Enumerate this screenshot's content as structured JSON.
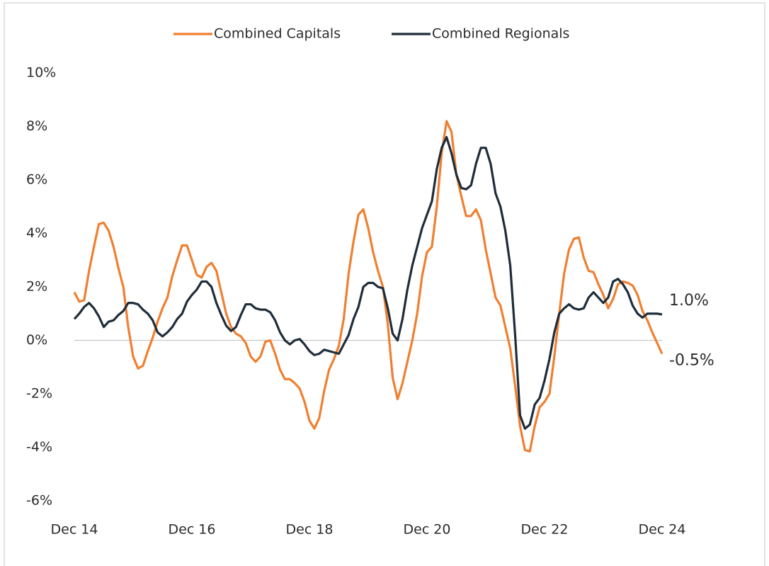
{
  "chart_data": {
    "type": "line",
    "categories": [
      "Dec 14",
      null,
      null,
      null,
      null,
      null,
      null,
      null,
      null,
      null,
      null,
      null,
      null,
      null,
      null,
      null,
      null,
      null,
      null,
      null,
      null,
      null,
      null,
      null,
      "Dec 16",
      null,
      null,
      null,
      null,
      null,
      null,
      null,
      null,
      null,
      null,
      null,
      null,
      null,
      null,
      null,
      null,
      null,
      null,
      null,
      null,
      null,
      null,
      null,
      "Dec 18",
      null,
      null,
      null,
      null,
      null,
      null,
      null,
      null,
      null,
      null,
      null,
      null,
      null,
      null,
      null,
      null,
      null,
      null,
      null,
      null,
      null,
      null,
      null,
      "Dec 20",
      null,
      null,
      null,
      null,
      null,
      null,
      null,
      null,
      null,
      null,
      null,
      null,
      null,
      null,
      null,
      null,
      null,
      null,
      null,
      null,
      null,
      null,
      null,
      "Dec 22",
      null,
      null,
      null,
      null,
      null,
      null,
      null,
      null,
      null,
      null,
      null,
      null,
      null,
      null,
      null,
      null,
      null,
      null,
      null,
      null,
      null,
      null,
      null,
      "Dec 24"
    ],
    "series": [
      {
        "name": "Combined Capitals",
        "color": "#f07f30",
        "values": [
          1.8,
          1.45,
          1.5,
          2.6,
          3.5,
          4.35,
          4.4,
          4.1,
          3.5,
          2.7,
          2.0,
          0.5,
          -0.6,
          -1.05,
          -0.95,
          -0.4,
          0.1,
          0.7,
          1.2,
          1.6,
          2.4,
          3.0,
          3.55,
          3.55,
          3.0,
          2.45,
          2.35,
          2.75,
          2.9,
          2.6,
          1.8,
          1.0,
          0.5,
          0.25,
          0.15,
          -0.1,
          -0.6,
          -0.8,
          -0.6,
          -0.05,
          0.0,
          -0.5,
          -1.1,
          -1.45,
          -1.45,
          -1.6,
          -1.8,
          -2.3,
          -3.0,
          -3.3,
          -2.9,
          -1.9,
          -1.1,
          -0.7,
          -0.2,
          0.8,
          2.5,
          3.7,
          4.7,
          4.9,
          4.2,
          3.3,
          2.6,
          2.0,
          0.6,
          -1.4,
          -2.2,
          -1.6,
          -0.8,
          0.0,
          1.0,
          2.4,
          3.3,
          3.5,
          5.0,
          7.0,
          8.2,
          7.8,
          6.2,
          5.4,
          4.65,
          4.65,
          4.9,
          4.5,
          3.4,
          2.5,
          1.6,
          1.3,
          0.5,
          -0.3,
          -1.7,
          -3.2,
          -4.1,
          -4.15,
          -3.2,
          -2.5,
          -2.3,
          -2.0,
          -0.6,
          1.0,
          2.5,
          3.4,
          3.8,
          3.85,
          3.1,
          2.6,
          2.55,
          2.1,
          1.7,
          1.2,
          1.55,
          2.1,
          2.2,
          2.15,
          2.05,
          1.7,
          1.1,
          0.75,
          0.3,
          -0.1,
          -0.5
        ]
      },
      {
        "name": "Combined Regionals",
        "color": "#1f2d3a",
        "values": [
          0.8,
          1.0,
          1.25,
          1.4,
          1.2,
          0.9,
          0.5,
          0.7,
          0.75,
          0.95,
          1.1,
          1.4,
          1.4,
          1.35,
          1.15,
          1.0,
          0.75,
          0.3,
          0.15,
          0.3,
          0.5,
          0.8,
          1.0,
          1.45,
          1.7,
          1.9,
          2.2,
          2.2,
          2.0,
          1.4,
          0.95,
          0.55,
          0.35,
          0.5,
          0.95,
          1.35,
          1.35,
          1.2,
          1.15,
          1.15,
          1.05,
          0.75,
          0.3,
          0.0,
          -0.15,
          0.0,
          0.05,
          -0.15,
          -0.4,
          -0.55,
          -0.5,
          -0.35,
          -0.4,
          -0.45,
          -0.5,
          -0.15,
          0.2,
          0.8,
          1.25,
          2.0,
          2.15,
          2.15,
          2.0,
          1.95,
          1.2,
          0.25,
          0.0,
          0.8,
          1.9,
          2.8,
          3.5,
          4.2,
          4.7,
          5.2,
          6.4,
          7.2,
          7.6,
          7.0,
          6.2,
          5.7,
          5.65,
          5.8,
          6.6,
          7.2,
          7.2,
          6.6,
          5.5,
          5.0,
          4.1,
          2.8,
          0.2,
          -2.8,
          -3.3,
          -3.15,
          -2.4,
          -2.15,
          -1.5,
          -0.7,
          0.3,
          1.0,
          1.2,
          1.35,
          1.2,
          1.15,
          1.2,
          1.6,
          1.8,
          1.6,
          1.4,
          1.6,
          2.2,
          2.3,
          2.1,
          1.8,
          1.3,
          1.0,
          0.85,
          1.0,
          1.0,
          1.0,
          0.97
        ]
      }
    ],
    "annotations": [
      "-0.5%",
      "1.0%"
    ],
    "ylim": [
      -6,
      10
    ],
    "yticks": [
      {
        "value": -6,
        "label": "-6%"
      },
      {
        "value": -4,
        "label": "-4%"
      },
      {
        "value": -2,
        "label": "-2%"
      },
      {
        "value": 0,
        "label": "0%"
      },
      {
        "value": 2,
        "label": "2%"
      },
      {
        "value": 4,
        "label": "4%"
      },
      {
        "value": 6,
        "label": "6%"
      },
      {
        "value": 8,
        "label": "8%"
      },
      {
        "value": 10,
        "label": "10%"
      }
    ],
    "legend": "top",
    "grid": false
  }
}
